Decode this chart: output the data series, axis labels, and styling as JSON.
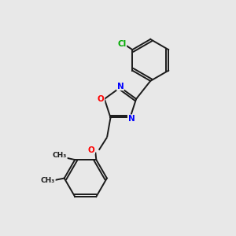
{
  "background_color": "#e8e8e8",
  "bond_color": "#1a1a1a",
  "atom_colors": {
    "N": "#0000ff",
    "O": "#ff0000",
    "Cl": "#00aa00",
    "C": "#1a1a1a"
  },
  "figsize": [
    3.0,
    3.0
  ],
  "dpi": 100,
  "lw": 1.4
}
